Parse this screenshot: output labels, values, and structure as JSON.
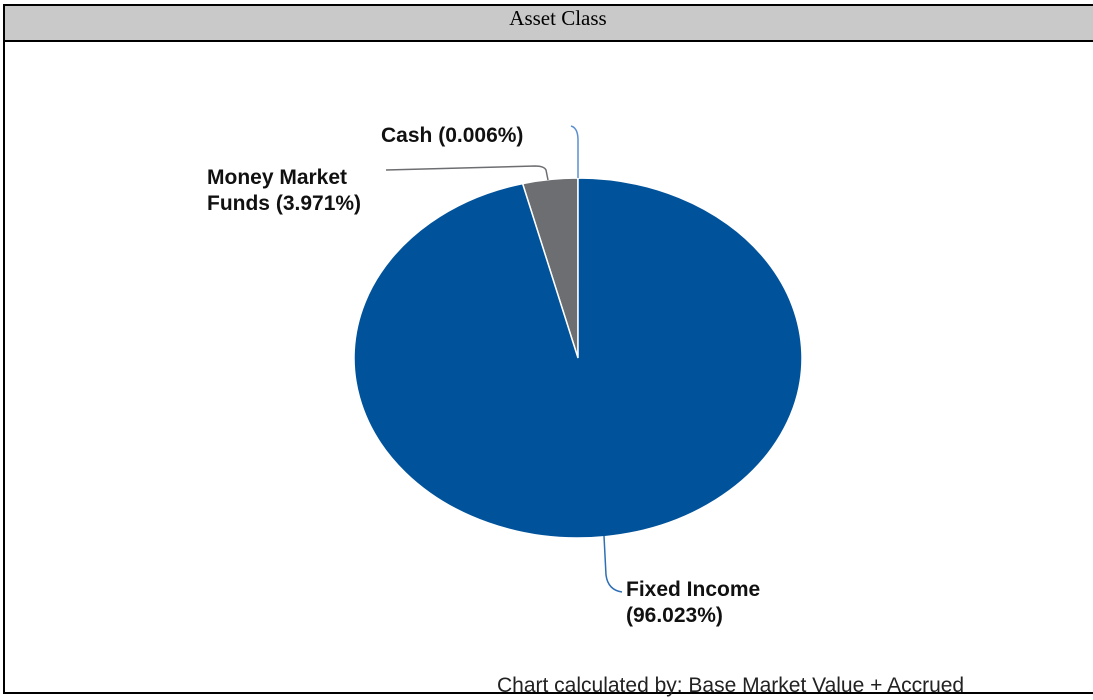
{
  "chart_data": {
    "type": "pie",
    "title": "Asset Class",
    "categories": [
      "Fixed Income",
      "Money Market Funds",
      "Cash"
    ],
    "values": [
      96.023,
      3.971,
      0.006
    ],
    "value_labels": [
      "(96.023%)",
      "(3.971%)",
      "(0.006%)"
    ],
    "colors": [
      "#00529b",
      "#6d6e71",
      "#5b8fd0"
    ],
    "footnote": "Chart calculated by: Base Market Value + Accrued"
  }
}
